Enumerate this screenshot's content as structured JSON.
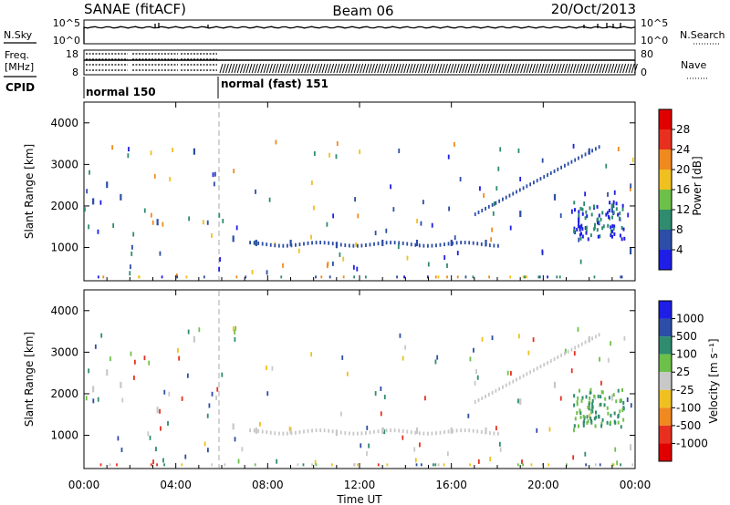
{
  "header": {
    "radar": "SANAE (fitACF)",
    "beam": "Beam 06",
    "date": "20/Oct/2013"
  },
  "strip_nsky": {
    "left_label": "N.Sky",
    "right_label": "N.Search",
    "left_ticks": [
      "10^5",
      "10^0"
    ],
    "right_ticks": [
      "10^5",
      "10^0"
    ]
  },
  "strip_freq": {
    "left_label_line1": "Freq.",
    "left_label_line2": "[MHz]",
    "right_label": "Nave",
    "left_ticks": [
      "18",
      "8"
    ],
    "right_ticks": [
      "80",
      "0"
    ]
  },
  "cpid": {
    "label": "CPID",
    "segments": [
      {
        "name": "normal 150",
        "start_h": 0,
        "end_h": 6
      },
      {
        "name": "normal (fast) 151",
        "start_h": 6,
        "end_h": 24
      }
    ]
  },
  "time_axis": {
    "label": "Time UT",
    "ticks": [
      "00:00",
      "04:00",
      "08:00",
      "12:00",
      "16:00",
      "20:00",
      "00:00"
    ],
    "range_h": [
      0,
      24
    ]
  },
  "chart_data": [
    {
      "type": "heatmap",
      "panel": "power",
      "ylabel": "Slant Range [km]",
      "y_ticks": [
        "1000",
        "2000",
        "3000",
        "4000"
      ],
      "ylim": [
        200,
        4500
      ],
      "colorbar": {
        "label": "Power [dB]",
        "ticks": [
          "4",
          "8",
          "12",
          "16",
          "20",
          "24",
          "28"
        ],
        "colors": [
          "#1e1ee6",
          "#2c4ea6",
          "#2f8c6e",
          "#6dc04a",
          "#f0c020",
          "#f08a20",
          "#e83020",
          "#e00000"
        ]
      },
      "series": [
        {
          "name": "Power",
          "color": "#2c4ea6",
          "x": [
            0.4,
            1.0,
            1.6,
            3.2,
            4.8,
            6.5,
            7.5,
            9.0,
            11.0,
            13.0,
            14.5,
            16.0,
            17.5,
            19.0,
            20.5,
            22.0,
            23.0,
            23.8
          ],
          "y": [
            2100,
            2500,
            2200,
            1600,
            3300,
            1200,
            1100,
            1100,
            1050,
            1100,
            1100,
            1100,
            1100,
            1800,
            2200,
            3300,
            1900,
            900
          ]
        }
      ]
    },
    {
      "type": "heatmap",
      "panel": "velocity",
      "ylabel": "Slant Range [km]",
      "y_ticks": [
        "1000",
        "2000",
        "3000",
        "4000"
      ],
      "ylim": [
        200,
        4500
      ],
      "colorbar": {
        "label": "Velocity [m s⁻¹]",
        "ticks": [
          "1000",
          "500",
          "100",
          "25",
          "-25",
          "-100",
          "-500",
          "-1000"
        ],
        "colors": [
          "#1e1ee6",
          "#2c4ea6",
          "#2f8c6e",
          "#6dc04a",
          "#c8c8c8",
          "#f0c020",
          "#f08a20",
          "#e83020",
          "#e00000"
        ]
      },
      "series": [
        {
          "name": "Velocity",
          "color": "#c8c8c8",
          "x": [
            0.4,
            1.0,
            1.6,
            3.2,
            4.8,
            6.5,
            7.5,
            9.0,
            11.0,
            13.0,
            14.5,
            16.0,
            17.5,
            19.0,
            20.5,
            22.0,
            23.0,
            23.8
          ],
          "y": [
            2100,
            2500,
            2200,
            1600,
            3300,
            1200,
            1100,
            1100,
            1050,
            1100,
            1100,
            1100,
            1100,
            1800,
            2200,
            3300,
            1900,
            700
          ]
        }
      ]
    }
  ]
}
